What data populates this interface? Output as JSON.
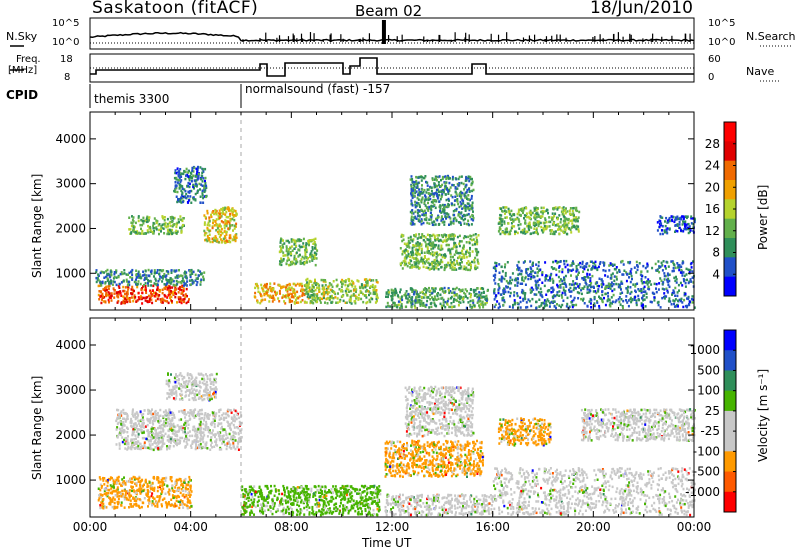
{
  "header": {
    "site": "Saskatoon (fitACF)",
    "beam": "Beam 02",
    "date": "18/Jun/2010"
  },
  "noise_panel": {
    "left_label": "N.Sky",
    "right_label": "N.Search",
    "left_ticks": [
      "10^5",
      "10^0"
    ],
    "right_ticks": [
      "10^5",
      "10^0"
    ]
  },
  "freq_panel": {
    "left_label_1": "Freq.",
    "left_label_2": "[MHz]",
    "right_label": "Nave",
    "left_ticks": [
      "18",
      "8"
    ],
    "right_ticks": [
      "60",
      "0"
    ]
  },
  "cpid": {
    "label": "CPID",
    "programs": [
      {
        "name": "themis 3300",
        "start_hour": 0,
        "end_hour": 6
      },
      {
        "name": "normalsound (fast) -157",
        "start_hour": 6,
        "end_hour": 24
      }
    ]
  },
  "colors": {
    "power": [
      "#0000ff",
      "#2050c8",
      "#2f8f5a",
      "#62b04b",
      "#b5d32d",
      "#f0a000",
      "#f06a00",
      "#e00000",
      "#ff0000"
    ],
    "velocity": [
      "#ff0000",
      "#ff5a00",
      "#ff9a00",
      "#c8c8c8",
      "#c8c8c8",
      "#46b400",
      "#2f8f5a",
      "#0000ff"
    ]
  },
  "chart_data": [
    {
      "type": "heatmap",
      "quantity": "power",
      "ylabel": "Slant Range [km]",
      "xlabel": "",
      "xlim": [
        0,
        24
      ],
      "ylim": [
        180,
        4600
      ],
      "yticks": [
        "1000",
        "2000",
        "3000",
        "4000"
      ],
      "colorbar_label": "Power [dB]",
      "colorbar_ticks": [
        "4",
        "8",
        "12",
        "16",
        "20",
        "24",
        "28"
      ],
      "colorbar_range": [
        0,
        32
      ],
      "regions": [
        {
          "t0": 0.3,
          "t1": 3.9,
          "r0": 350,
          "r1": 750,
          "level": 28
        },
        {
          "t0": 0.2,
          "t1": 4.5,
          "r0": 750,
          "r1": 1100,
          "level": 10
        },
        {
          "t0": 1.5,
          "t1": 3.7,
          "r0": 1900,
          "r1": 2300,
          "level": 14
        },
        {
          "t0": 4.5,
          "t1": 5.8,
          "r0": 1700,
          "r1": 2500,
          "level": 20
        },
        {
          "t0": 3.3,
          "t1": 4.6,
          "r0": 2600,
          "r1": 3400,
          "level": 8
        },
        {
          "t0": 6.5,
          "t1": 8.5,
          "r0": 350,
          "r1": 800,
          "level": 22
        },
        {
          "t0": 7.5,
          "t1": 9.0,
          "r0": 1200,
          "r1": 1800,
          "level": 14
        },
        {
          "t0": 8.5,
          "t1": 11.4,
          "r0": 350,
          "r1": 900,
          "level": 16
        },
        {
          "t0": 11.7,
          "t1": 15.8,
          "r0": 250,
          "r1": 700,
          "level": 12
        },
        {
          "t0": 12.3,
          "t1": 15.4,
          "r0": 1100,
          "r1": 1900,
          "level": 14
        },
        {
          "t0": 12.7,
          "t1": 15.2,
          "r0": 2100,
          "r1": 3200,
          "level": 10
        },
        {
          "t0": 16.0,
          "t1": 24.0,
          "r0": 250,
          "r1": 1300,
          "level": 8
        },
        {
          "t0": 16.2,
          "t1": 19.4,
          "r0": 1900,
          "r1": 2500,
          "level": 14
        },
        {
          "t0": 22.5,
          "t1": 24.0,
          "r0": 1900,
          "r1": 2300,
          "level": 6
        }
      ]
    },
    {
      "type": "heatmap",
      "quantity": "velocity",
      "ylabel": "Slant Range [km]",
      "xlabel": "Time UT",
      "xlim": [
        0,
        24
      ],
      "ylim": [
        180,
        4600
      ],
      "yticks": [
        "1000",
        "2000",
        "3000",
        "4000"
      ],
      "xticks": [
        "00:00",
        "04:00",
        "08:00",
        "12:00",
        "16:00",
        "20:00",
        "00:00"
      ],
      "colorbar_label": "Velocity [m s⁻¹]",
      "colorbar_ticks": [
        "1000",
        "500",
        "100",
        "25",
        "-25",
        "-100",
        "-500",
        "-1000"
      ],
      "regions": [
        {
          "t0": 0.3,
          "t1": 4.0,
          "r0": 400,
          "r1": 1100,
          "level": "-100"
        },
        {
          "t0": 1.0,
          "t1": 6.0,
          "r0": 1700,
          "r1": 2600,
          "level": "25"
        },
        {
          "t0": 3.0,
          "t1": 5.0,
          "r0": 2800,
          "r1": 3400,
          "level": "25"
        },
        {
          "t0": 6.0,
          "t1": 11.5,
          "r0": 250,
          "r1": 900,
          "level": "100"
        },
        {
          "t0": 11.7,
          "t1": 15.6,
          "r0": 1100,
          "r1": 1900,
          "level": "-100"
        },
        {
          "t0": 11.7,
          "t1": 16.0,
          "r0": 250,
          "r1": 700,
          "level": "25"
        },
        {
          "t0": 12.5,
          "t1": 15.2,
          "r0": 2000,
          "r1": 3100,
          "level": "25"
        },
        {
          "t0": 16.0,
          "t1": 24.0,
          "r0": 250,
          "r1": 1300,
          "level": "25"
        },
        {
          "t0": 16.2,
          "t1": 18.3,
          "r0": 1800,
          "r1": 2400,
          "level": "-100"
        },
        {
          "t0": 19.5,
          "t1": 24.0,
          "r0": 1900,
          "r1": 2600,
          "level": "25"
        }
      ]
    }
  ]
}
